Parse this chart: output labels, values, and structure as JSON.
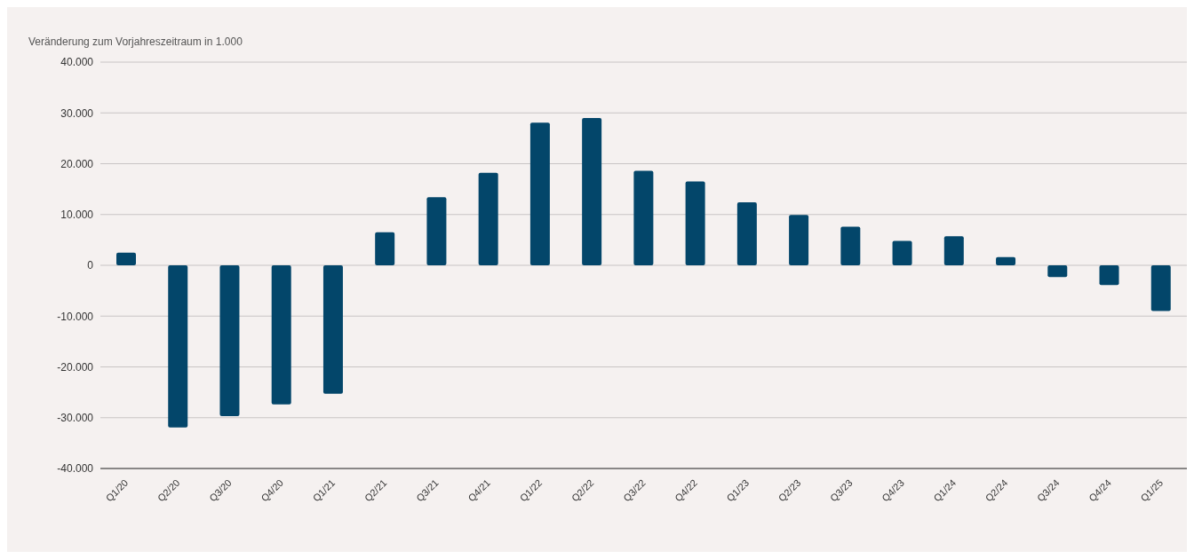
{
  "chart_data": {
    "type": "bar",
    "ylabel": "Veränderung zum Vorjahreszeitraum in 1.000",
    "categories": [
      "Q1/20",
      "Q2/20",
      "Q3/20",
      "Q4/20",
      "Q1/21",
      "Q2/21",
      "Q3/21",
      "Q4/21",
      "Q1/22",
      "Q2/22",
      "Q3/22",
      "Q4/22",
      "Q1/23",
      "Q2/23",
      "Q3/23",
      "Q4/23",
      "Q1/24",
      "Q2/24",
      "Q3/24",
      "Q4/24",
      "Q1/25"
    ],
    "values": [
      2500,
      -31900,
      -29700,
      -27400,
      -25300,
      6500,
      13400,
      18200,
      28100,
      29000,
      18600,
      16500,
      12400,
      9900,
      7600,
      4800,
      5700,
      1600,
      -2300,
      -3900,
      -9000
    ],
    "color": "#03466a",
    "ylim": [
      -40000,
      40000
    ],
    "yticks": [
      {
        "value": -40000,
        "label": "-40.000"
      },
      {
        "value": -30000,
        "label": "-30.000"
      },
      {
        "value": -20000,
        "label": "-20.000"
      },
      {
        "value": -10000,
        "label": "-10.000"
      },
      0,
      {
        "value": 10000,
        "label": "10.000"
      },
      {
        "value": 20000,
        "label": "20.000"
      },
      {
        "value": 30000,
        "label": "30.000"
      },
      {
        "value": 40000,
        "label": "40.000"
      }
    ],
    "grid": "y",
    "legend": false
  }
}
